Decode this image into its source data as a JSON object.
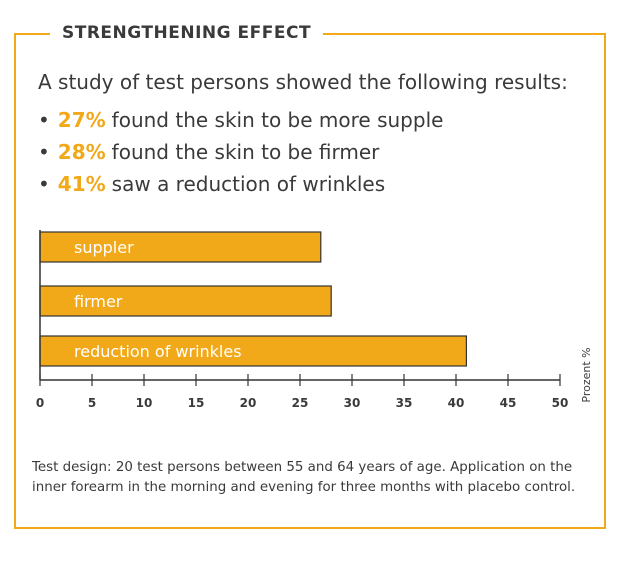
{
  "heading": "STRENGTHENING EFFECT",
  "intro": "A study of test persons showed the following results:",
  "results": [
    {
      "percent": "27%",
      "text": "found the skin to be more supple"
    },
    {
      "percent": "28%",
      "text": "found the skin to be firmer"
    },
    {
      "percent": "41%",
      "text": "saw a reduction of wrinkles"
    }
  ],
  "colors": {
    "accent": "#f2a919",
    "text": "#3a3a3a",
    "bar_label": "#ffffff"
  },
  "chart_data": {
    "type": "bar",
    "orientation": "horizontal",
    "categories": [
      "suppler",
      "firmer",
      "reduction of wrinkles"
    ],
    "values": [
      27,
      28,
      41
    ],
    "xlabel": "Prozent %",
    "xlim": [
      0,
      50
    ],
    "xticks": [
      0,
      5,
      10,
      15,
      20,
      25,
      30,
      35,
      40,
      45,
      50
    ],
    "grid": false
  },
  "footnote": "Test design: 20 test persons between 55 and 64 years of age. Application on the inner forearm in the morning and evening for three months with placebo control."
}
